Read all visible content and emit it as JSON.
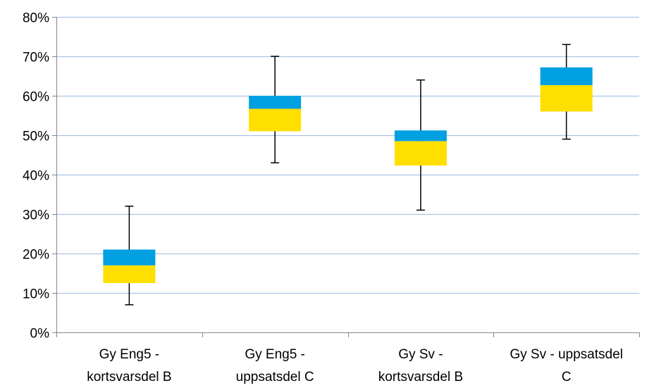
{
  "chart_data": {
    "type": "box",
    "title": "",
    "xlabel": "",
    "ylabel": "",
    "ylim": [
      0,
      80
    ],
    "y_unit": "%",
    "y_ticks": [
      0,
      10,
      20,
      30,
      40,
      50,
      60,
      70,
      80
    ],
    "y_tick_labels": [
      "0%",
      "10%",
      "20%",
      "30%",
      "40%",
      "50%",
      "60%",
      "70%",
      "80%"
    ],
    "grid": true,
    "legend": "none",
    "categories": [
      [
        "Gy Eng5 -",
        "kortsvarsdel B"
      ],
      [
        "Gy Eng5 -",
        "uppsatsdel C"
      ],
      [
        "Gy Sv -",
        "kortsvarsdel B"
      ],
      [
        "Gy Sv - uppsatsdel",
        "C"
      ]
    ],
    "boxes": [
      {
        "min": 7,
        "q1": 12.5,
        "median": 17,
        "q3": 21,
        "max": 32
      },
      {
        "min": 43,
        "q1": 51,
        "median": 56.7,
        "q3": 60,
        "max": 70
      },
      {
        "min": 31,
        "q1": 42.3,
        "median": 48.5,
        "q3": 51.2,
        "max": 64
      },
      {
        "min": 49,
        "q1": 56,
        "median": 62.7,
        "q3": 67.2,
        "max": 73
      }
    ],
    "colors": {
      "lower_box": "#ffdf00",
      "upper_box": "#00a0e1",
      "whisker": "#000000",
      "grid": "#a9c4e4",
      "axis": "#868686"
    }
  }
}
